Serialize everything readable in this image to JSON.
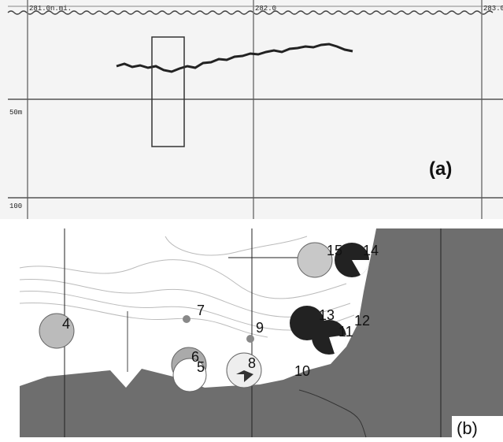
{
  "panel_a": {
    "distance_labels": [
      "281.0n.mi.",
      "282.0",
      "283.0"
    ],
    "depth_labels": [
      "50m",
      "100"
    ],
    "label": "(a)"
  },
  "panel_b": {
    "stations": [
      "4",
      "5",
      "6",
      "7",
      "8",
      "9",
      "10",
      "11",
      "12",
      "13",
      "14",
      "15"
    ],
    "label": "(b)"
  }
}
